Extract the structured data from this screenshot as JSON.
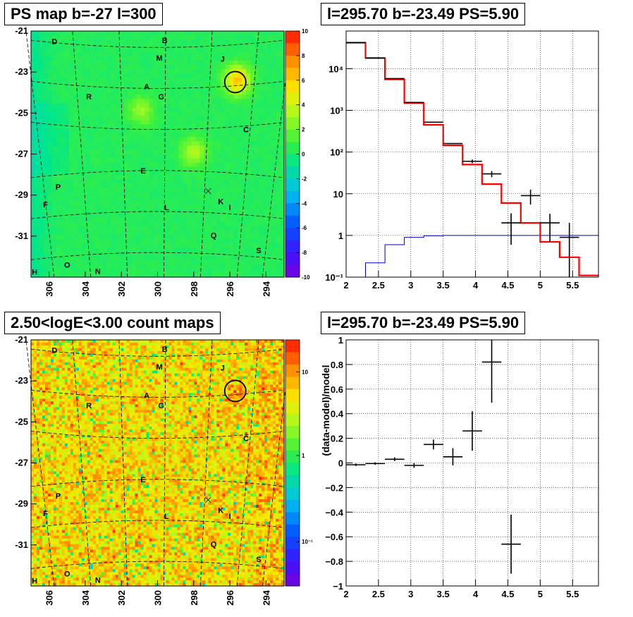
{
  "panels": {
    "tl_title": "PS map b=-27 l=300",
    "tr_title": "l=295.70 b=-23.49 PS=5.90",
    "bl_title": "2.50<logE<3.00 count maps",
    "br_title": "l=295.70 b=-23.49 PS=5.90"
  },
  "colors": {
    "model": "#ff0000",
    "data": "#000000",
    "background_model": "#0000cc",
    "map_green": "#3df23d",
    "map_orange": "#f77d1a"
  },
  "map_labels": [
    {
      "text": "D",
      "l": 305.7,
      "b": -21.5
    },
    {
      "text": "B",
      "l": 299.6,
      "b": -21.45
    },
    {
      "text": "M",
      "l": 299.9,
      "b": -22.3
    },
    {
      "text": "J",
      "l": 296.4,
      "b": -22.35
    },
    {
      "text": "A",
      "l": 300.6,
      "b": -23.7
    },
    {
      "text": "G",
      "l": 299.8,
      "b": -24.2
    },
    {
      "text": "R",
      "l": 303.8,
      "b": -24.2
    },
    {
      "text": "C",
      "l": 295.1,
      "b": -25.8
    },
    {
      "text": "E",
      "l": 300.8,
      "b": -27.8
    },
    {
      "text": "P",
      "l": 305.5,
      "b": -28.6
    },
    {
      "text": "F",
      "l": 306.2,
      "b": -29.45
    },
    {
      "text": "K",
      "l": 296.5,
      "b": -29.3
    },
    {
      "text": "I",
      "l": 296.0,
      "b": -29.6
    },
    {
      "text": "L",
      "l": 299.5,
      "b": -29.6
    },
    {
      "text": "Q",
      "l": 296.9,
      "b": -30.95
    },
    {
      "text": "S",
      "l": 294.4,
      "b": -31.7
    },
    {
      "text": "O",
      "l": 305.0,
      "b": -32.4
    },
    {
      "text": "H",
      "l": 306.8,
      "b": -32.75
    },
    {
      "text": "N",
      "l": 303.3,
      "b": -32.7
    }
  ],
  "map_axes": {
    "y_ticks": [
      "-21",
      "-23",
      "-25",
      "-27",
      "-29",
      "-31"
    ],
    "x_ticks": [
      "306",
      "304",
      "302",
      "300",
      "298",
      "296",
      "294"
    ]
  },
  "map_colorbars": {
    "ps_labels": [
      "10",
      "8",
      "6",
      "4",
      "2",
      "0",
      "-2",
      "-4",
      "-6",
      "-8",
      "-10"
    ],
    "count_labels": [
      "10",
      "1",
      "10⁻¹"
    ]
  },
  "chart_data": [
    {
      "type": "heatmap",
      "title": "PS map b=-27 l=300",
      "xlabel": "",
      "ylabel": "",
      "xlim": [
        307,
        293
      ],
      "ylim": [
        -33,
        -21
      ],
      "zlim": [
        -10,
        10
      ],
      "x_ticks": [
        306,
        304,
        302,
        300,
        298,
        296,
        294
      ],
      "y_ticks": [
        -21,
        -23,
        -25,
        -27,
        -29,
        -31
      ],
      "colorbar_ticks": [
        10,
        8,
        6,
        4,
        2,
        0,
        -2,
        -4,
        -6,
        -8,
        -10
      ],
      "hotspots": [
        {
          "l": 295.6,
          "b": -23.4,
          "value": 6
        },
        {
          "l": 298.0,
          "b": -26.9,
          "value": 3
        },
        {
          "l": 300.9,
          "b": -24.9,
          "value": 2.5
        }
      ],
      "circle": {
        "l": 295.7,
        "b": -23.49
      },
      "cross": {
        "l": 297.2,
        "b": -28.8
      }
    },
    {
      "type": "line",
      "title": "l=295.70 b=-23.49 PS=5.90",
      "xlabel": "",
      "ylabel": "",
      "xlim": [
        2,
        5.9
      ],
      "ylim": [
        0.1,
        80000
      ],
      "yscale": "log",
      "x_ticks": [
        2,
        2.5,
        3,
        3.5,
        4,
        4.5,
        5,
        5.5
      ],
      "y_ticks_labels": [
        "10⁻¹",
        "1",
        "10",
        "10²",
        "10³",
        "10⁴"
      ],
      "grid": true,
      "x_edges": [
        2.0,
        2.3,
        2.6,
        2.9,
        3.2,
        3.5,
        3.8,
        4.1,
        4.4,
        4.7,
        5.0,
        5.3,
        5.6,
        5.9
      ],
      "series": [
        {
          "kind": "model-step",
          "values": [
            42000,
            18000,
            5500,
            1500,
            450,
            145,
            50,
            17,
            6,
            2,
            0.7,
            0.3,
            0.11
          ]
        },
        {
          "kind": "data-points",
          "values": [
            42000,
            18000,
            5800,
            1550,
            520,
            160,
            60,
            30,
            2.0,
            9.0,
            2.0,
            0.9
          ],
          "err_low": [
            0,
            0,
            0,
            0,
            0,
            0,
            6,
            5,
            1.4,
            3.5,
            1.3,
            0.8
          ],
          "err_high": [
            0,
            0,
            0,
            0,
            0,
            0,
            6,
            5,
            1.4,
            3.5,
            1.3,
            1.1
          ]
        },
        {
          "kind": "background-step",
          "values": [
            0.1,
            0.22,
            0.6,
            0.9,
            0.98,
            1,
            1,
            1,
            1,
            1,
            1,
            1,
            1
          ]
        }
      ]
    },
    {
      "type": "heatmap",
      "title": "2.50<logE<3.00 count maps",
      "xlabel": "",
      "ylabel": "",
      "xlim": [
        307,
        293
      ],
      "ylim": [
        -33,
        -21
      ],
      "zscale": "log",
      "x_ticks": [
        306,
        304,
        302,
        300,
        298,
        296,
        294
      ],
      "y_ticks": [
        -21,
        -23,
        -25,
        -27,
        -29,
        -31
      ],
      "colorbar_ticks": [
        10,
        1,
        0.1
      ],
      "circle": {
        "l": 295.7,
        "b": -23.49
      },
      "cross": {
        "l": 297.2,
        "b": -28.8
      }
    },
    {
      "type": "scatter",
      "title": "l=295.70 b=-23.49 PS=5.90",
      "xlabel": "",
      "ylabel": "(data-model)/model",
      "xlim": [
        2,
        5.9
      ],
      "ylim": [
        -1,
        1
      ],
      "x_ticks": [
        2,
        2.5,
        3,
        3.5,
        4,
        4.5,
        5,
        5.5
      ],
      "y_ticks": [
        -1,
        -0.8,
        -0.6,
        -0.4,
        -0.2,
        0,
        0.2,
        0.4,
        0.6,
        0.8,
        1
      ],
      "grid": true,
      "points": [
        {
          "x": 2.15,
          "y": -0.015,
          "xerr": 0.15,
          "yerr": 0.01
        },
        {
          "x": 2.45,
          "y": -0.005,
          "xerr": 0.15,
          "yerr": 0.01
        },
        {
          "x": 2.75,
          "y": 0.03,
          "xerr": 0.15,
          "yerr": 0.015
        },
        {
          "x": 3.05,
          "y": -0.02,
          "xerr": 0.15,
          "yerr": 0.02
        },
        {
          "x": 3.35,
          "y": 0.15,
          "xerr": 0.15,
          "yerr": 0.04
        },
        {
          "x": 3.65,
          "y": 0.05,
          "xerr": 0.15,
          "yerr": 0.07
        },
        {
          "x": 3.95,
          "y": 0.26,
          "xerr": 0.15,
          "yerr": 0.16
        },
        {
          "x": 4.25,
          "y": 0.82,
          "xerr": 0.15,
          "yerr": 0.33
        },
        {
          "x": 4.55,
          "y": -0.66,
          "xerr": 0.15,
          "yerr": 0.24
        }
      ]
    }
  ]
}
